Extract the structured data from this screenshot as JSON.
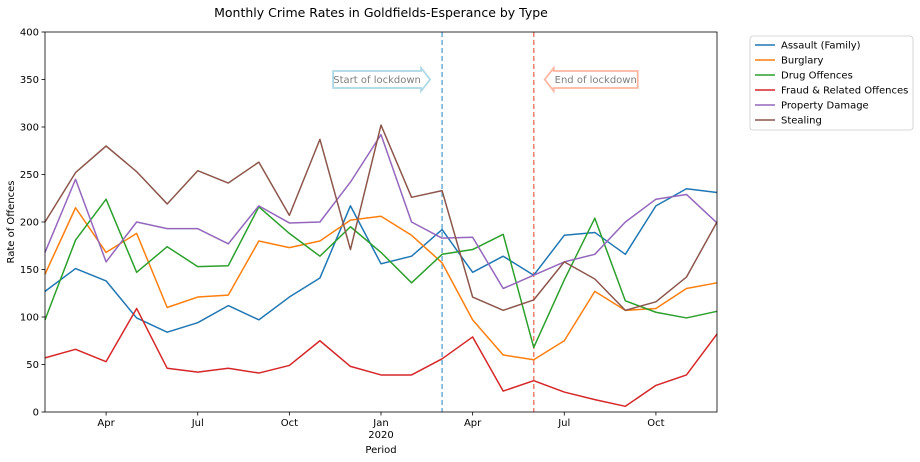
{
  "chart_data": {
    "type": "line",
    "title": "Monthly Crime Rates in Goldfields-Esperance by Type",
    "xlabel": "Period",
    "ylabel": "Rate of Offences",
    "ylim": [
      0,
      400
    ],
    "yticks": [
      0,
      50,
      100,
      150,
      200,
      250,
      300,
      350,
      400
    ],
    "x": [
      "2019-02",
      "2019-03",
      "2019-04",
      "2019-05",
      "2019-06",
      "2019-07",
      "2019-08",
      "2019-09",
      "2019-10",
      "2019-11",
      "2019-12",
      "2020-01",
      "2020-02",
      "2020-03",
      "2020-04",
      "2020-05",
      "2020-06",
      "2020-07",
      "2020-08",
      "2020-09",
      "2020-10",
      "2020-11",
      "2020-12"
    ],
    "xlim": [
      "2019-02",
      "2020-12"
    ],
    "xticks": [
      {
        "at": "2019-04",
        "label": "Apr",
        "sublabel": ""
      },
      {
        "at": "2019-07",
        "label": "Jul",
        "sublabel": ""
      },
      {
        "at": "2019-10",
        "label": "Oct",
        "sublabel": ""
      },
      {
        "at": "2020-01",
        "label": "Jan",
        "sublabel": "2020"
      },
      {
        "at": "2020-04",
        "label": "Apr",
        "sublabel": ""
      },
      {
        "at": "2020-07",
        "label": "Jul",
        "sublabel": ""
      },
      {
        "at": "2020-10",
        "label": "Oct",
        "sublabel": ""
      }
    ],
    "grid": false,
    "legend_position": "outside-right-top",
    "series": [
      {
        "name": "Assault (Family)",
        "color": "#1f77b4",
        "values": [
          127,
          151,
          138,
          99,
          84,
          94,
          112,
          97,
          121,
          141,
          217,
          156,
          164,
          192,
          147,
          164,
          144,
          186,
          189,
          166,
          217,
          235,
          231
        ]
      },
      {
        "name": "Burglary",
        "color": "#ff7f0e",
        "values": [
          145,
          215,
          168,
          188,
          110,
          121,
          123,
          180,
          173,
          180,
          202,
          206,
          186,
          157,
          97,
          60,
          55,
          75,
          127,
          107,
          109,
          130,
          136
        ]
      },
      {
        "name": "Drug Offences",
        "color": "#2ca02c",
        "values": [
          97,
          181,
          224,
          147,
          174,
          153,
          154,
          216,
          188,
          164,
          195,
          168,
          136,
          166,
          171,
          187,
          68,
          139,
          204,
          117,
          105,
          99,
          106
        ]
      },
      {
        "name": "Fraud & Related Offences",
        "color": "#d62728",
        "values": [
          57,
          66,
          53,
          109,
          46,
          42,
          46,
          41,
          49,
          75,
          48,
          39,
          39,
          56,
          79,
          22,
          33,
          21,
          13,
          6,
          28,
          39,
          82
        ]
      },
      {
        "name": "Property Damage",
        "color": "#9467bd",
        "values": [
          168,
          245,
          158,
          200,
          193,
          193,
          177,
          217,
          199,
          200,
          242,
          292,
          200,
          183,
          184,
          130,
          144,
          158,
          166,
          200,
          224,
          229,
          199
        ]
      },
      {
        "name": "Stealing",
        "color": "#8c564b",
        "values": [
          200,
          252,
          280,
          253,
          219,
          254,
          241,
          263,
          207,
          287,
          171,
          302,
          226,
          233,
          121,
          107,
          118,
          158,
          140,
          107,
          116,
          142,
          200
        ]
      }
    ],
    "annotations": [
      {
        "label": "Start of lockdown",
        "at": "2020-03",
        "line_color": "#6baed6",
        "box_color": "#add8e6",
        "arrow": "right"
      },
      {
        "label": "End of lockdown",
        "at": "2020-06",
        "line_color": "#f08070",
        "box_color": "#ffb6a0",
        "arrow": "left"
      }
    ]
  }
}
